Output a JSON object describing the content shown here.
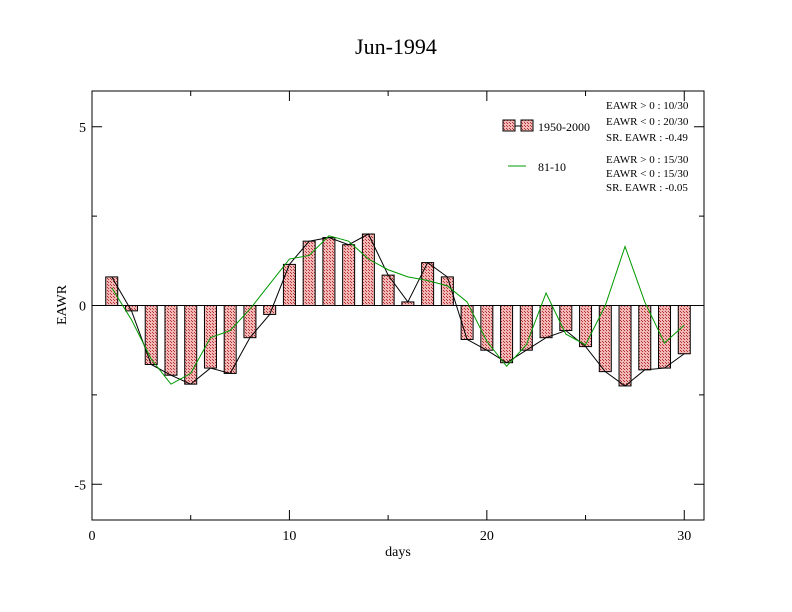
{
  "chart_data": {
    "type": "bar",
    "title": "Jun-1994",
    "xlabel": "days",
    "ylabel": "EAWR",
    "xlim": [
      0,
      31
    ],
    "ylim": [
      -6,
      6
    ],
    "xticks": [
      0,
      10,
      20,
      30
    ],
    "xtick_labels": [
      "0",
      "10",
      "20",
      "30"
    ],
    "yticks": [
      -5,
      0,
      5
    ],
    "ytick_labels": [
      "-5",
      "0",
      "5"
    ],
    "grid": false,
    "legend_position": "top-right",
    "x": [
      1,
      2,
      3,
      4,
      5,
      6,
      7,
      8,
      9,
      10,
      11,
      12,
      13,
      14,
      15,
      16,
      17,
      18,
      19,
      20,
      21,
      22,
      23,
      24,
      25,
      26,
      27,
      28,
      29,
      30
    ],
    "series": [
      {
        "name": "1950-2000",
        "kind": "bar",
        "color": "#e06666",
        "values": [
          0.8,
          -0.15,
          -1.65,
          -1.95,
          -2.2,
          -1.75,
          -1.9,
          -0.9,
          -0.25,
          1.15,
          1.8,
          1.9,
          1.7,
          2.0,
          0.85,
          0.1,
          1.2,
          0.8,
          -0.95,
          -1.25,
          -1.6,
          -1.25,
          -0.9,
          -0.7,
          -1.15,
          -1.85,
          -2.25,
          -1.8,
          -1.75,
          -1.35
        ]
      },
      {
        "name": "81-10",
        "kind": "line",
        "color": "#009900",
        "values": [
          0.5,
          -0.4,
          -1.5,
          -2.2,
          -1.9,
          -0.9,
          -0.7,
          -0.1,
          0.6,
          1.3,
          1.4,
          1.95,
          1.8,
          1.3,
          1.0,
          0.8,
          0.7,
          0.55,
          0.1,
          -1.0,
          -1.7,
          -1.1,
          0.35,
          -0.8,
          -1.1,
          0.0,
          1.65,
          0.1,
          -1.05,
          -0.55
        ]
      }
    ],
    "legend": [
      {
        "label": "1950-2000",
        "stats": [
          "EAWR > 0 : 10/30",
          "EAWR < 0 : 20/30",
          "SR. EAWR : -0.49"
        ]
      },
      {
        "label": "81-10",
        "stats": [
          "EAWR > 0 : 15/30",
          "EAWR < 0 : 15/30",
          "SR. EAWR : -0.05"
        ]
      }
    ]
  }
}
